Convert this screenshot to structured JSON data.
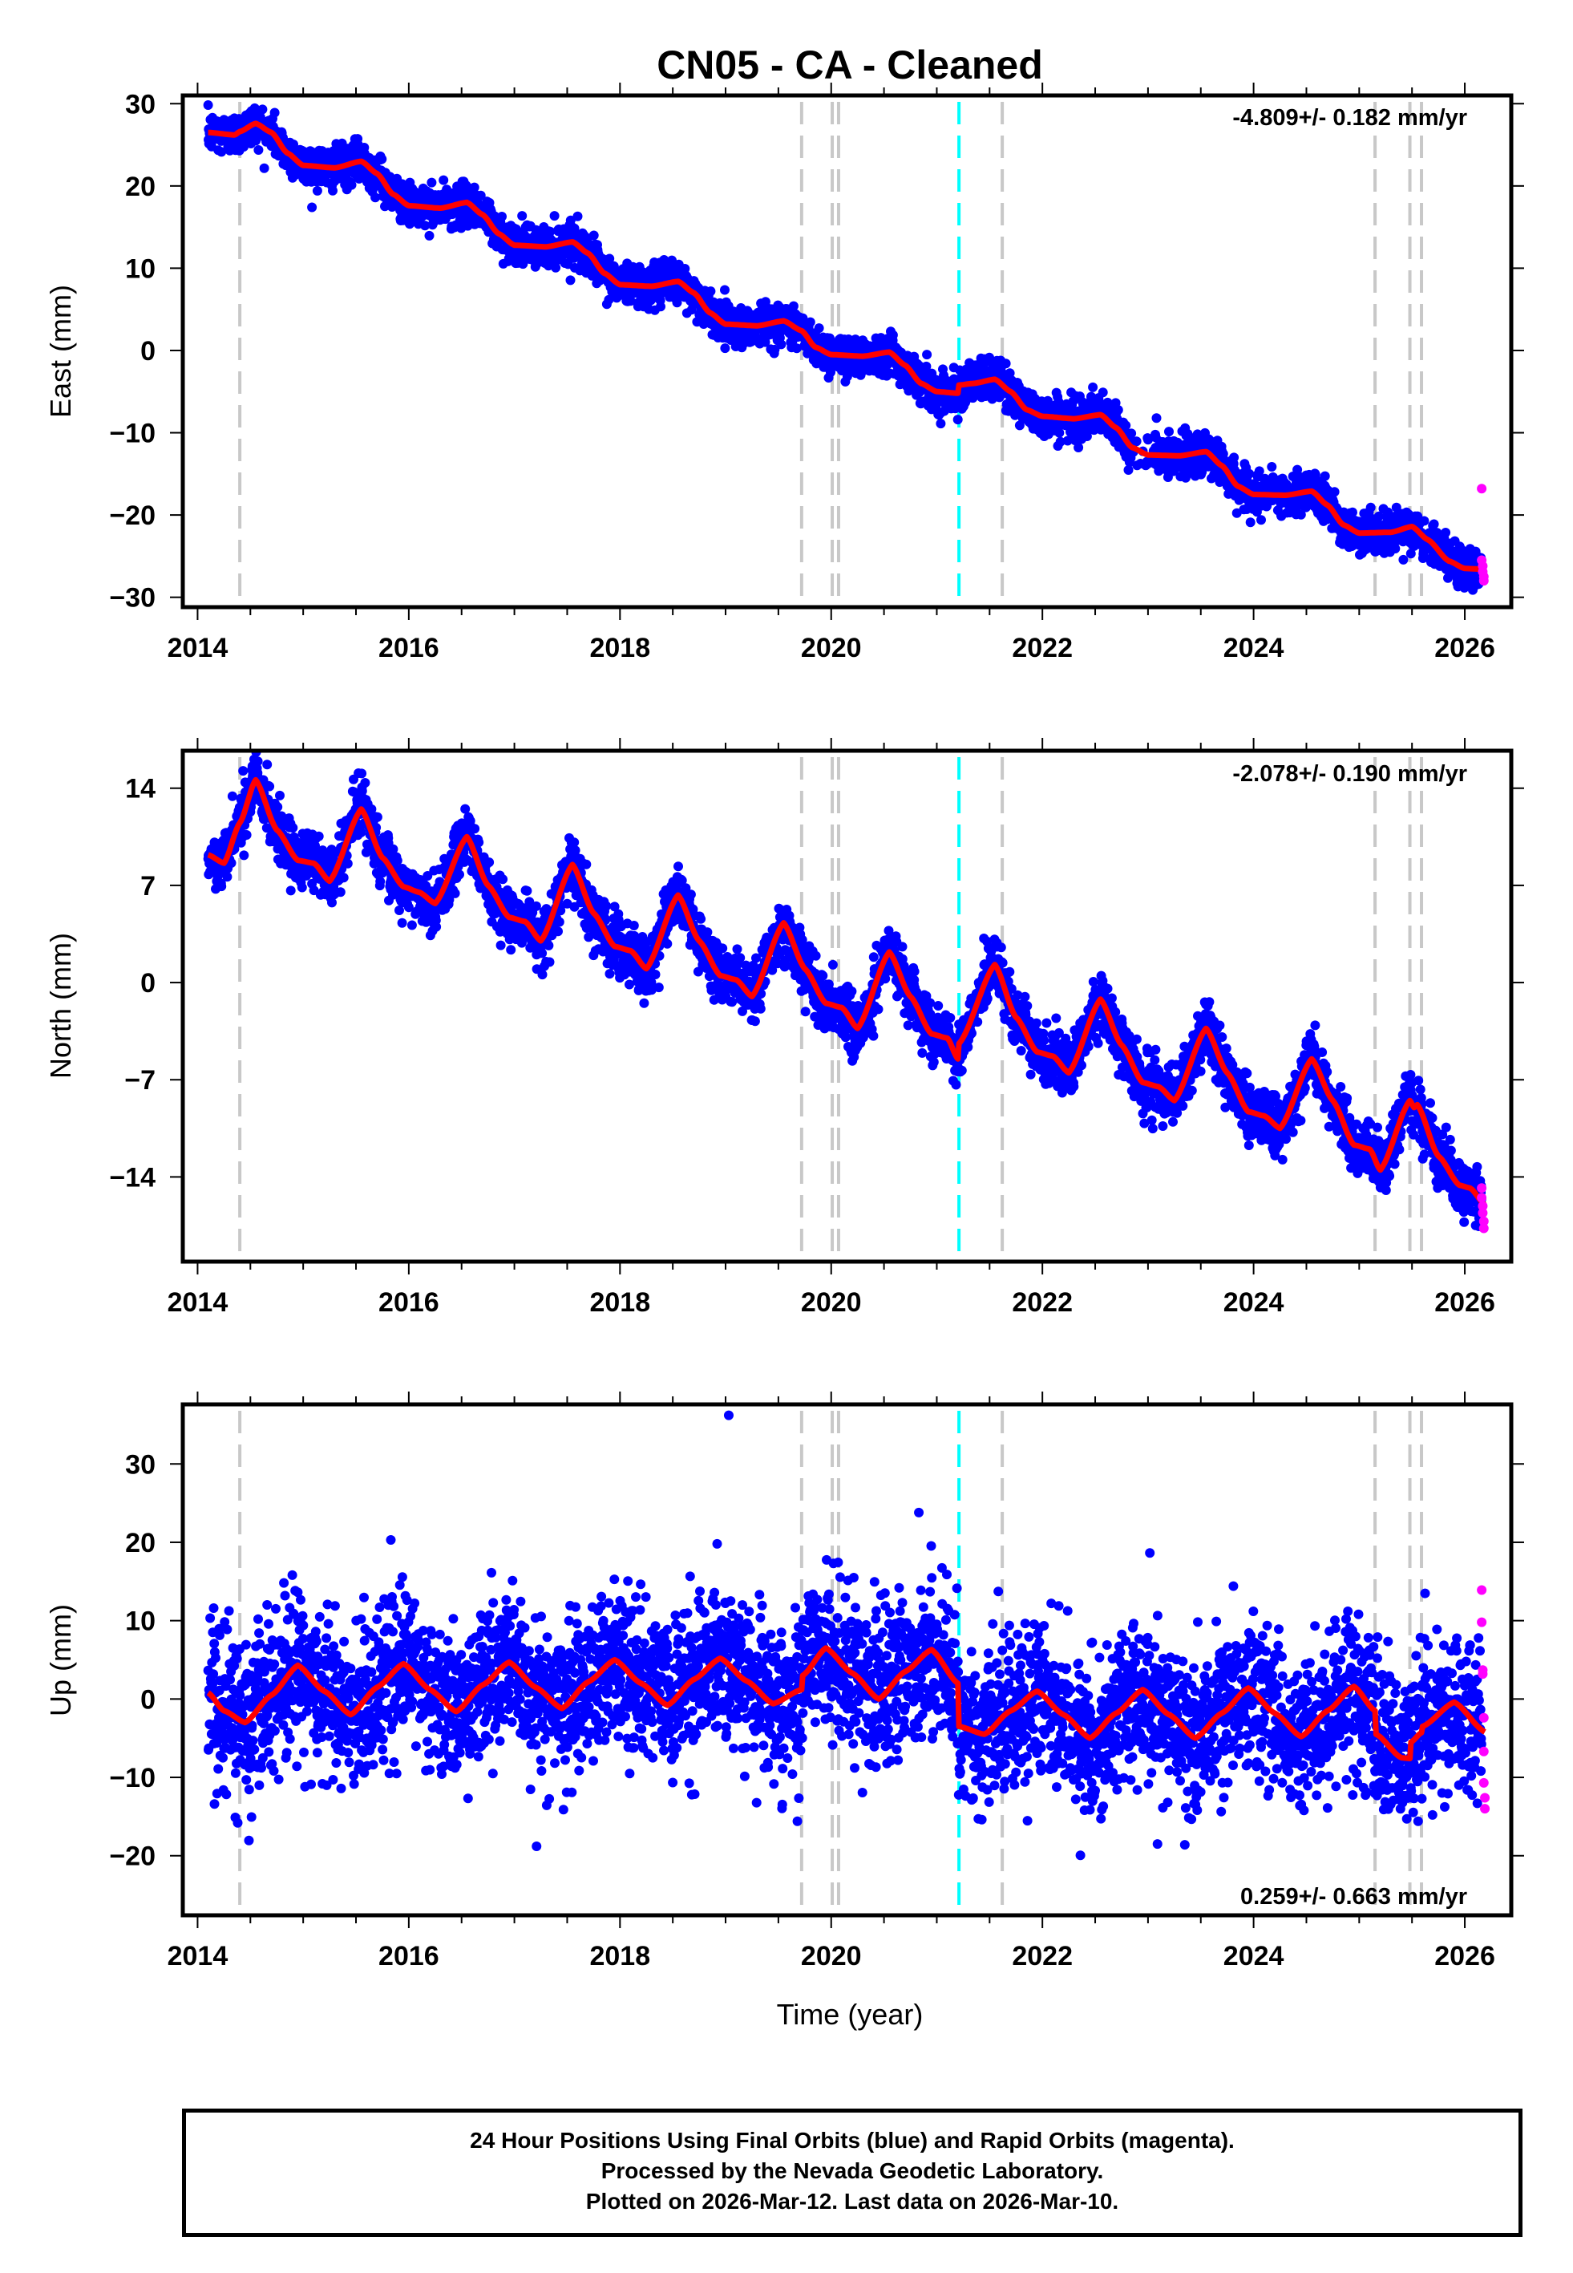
{
  "chart_data": {
    "type": "scatter",
    "title": "CN05  - CA - Cleaned",
    "xlabel": "Time (year)",
    "xlim": [
      2013.86,
      2026.44
    ],
    "x_ticks": [
      2014,
      2016,
      2018,
      2020,
      2022,
      2024,
      2026
    ],
    "x_tick_labels": [
      "2014",
      "2016",
      "2018",
      "2020",
      "2022",
      "2024",
      "2026"
    ],
    "x_minor_tick_step": 0.5,
    "data_start": 2014.1,
    "data_end": 2026.19,
    "equipment_change_lines": [
      2014.4,
      2019.72,
      2020.01,
      2020.07,
      2021.62,
      2025.15,
      2025.48,
      2025.59
    ],
    "earthquake_lines": [
      2021.21
    ],
    "colors": {
      "final_orbits": "#0000ff",
      "rapid_orbits": "#ff00ff",
      "model": "#ff0000",
      "equipment_line": "#c8c8c8",
      "earthquake_line": "#00ffff"
    },
    "panels": [
      {
        "name": "east",
        "ylabel": "East (mm)",
        "ylim": [
          -31.2,
          31.0
        ],
        "y_ticks": [
          30,
          20,
          10,
          0,
          -10,
          -20,
          -30
        ],
        "y_tick_labels": [
          "30",
          "20",
          "10",
          "0",
          "−10",
          "−20",
          "−30"
        ],
        "rate": "-4.809+/- 0.182 mm/yr",
        "rate_position": "top-right",
        "scatter_sigma": 1.2,
        "model_knots": [
          [
            2014.1,
            26.5
          ],
          [
            2014.35,
            26.2
          ],
          [
            2014.4,
            26.6
          ],
          [
            2014.55,
            27.6
          ],
          [
            2014.7,
            26.5
          ],
          [
            2014.85,
            24.0
          ],
          [
            2015.0,
            22.5
          ],
          [
            2015.3,
            22.2
          ],
          [
            2015.55,
            23.0
          ],
          [
            2015.7,
            21.5
          ],
          [
            2015.85,
            19.0
          ],
          [
            2016.0,
            17.6
          ],
          [
            2016.3,
            17.3
          ],
          [
            2016.55,
            18.0
          ],
          [
            2016.7,
            16.5
          ],
          [
            2016.85,
            14.2
          ],
          [
            2017.0,
            12.8
          ],
          [
            2017.3,
            12.6
          ],
          [
            2017.55,
            13.2
          ],
          [
            2017.7,
            11.8
          ],
          [
            2017.85,
            9.4
          ],
          [
            2018.0,
            8.0
          ],
          [
            2018.3,
            7.8
          ],
          [
            2018.55,
            8.4
          ],
          [
            2018.7,
            7.0
          ],
          [
            2018.85,
            4.6
          ],
          [
            2019.0,
            3.2
          ],
          [
            2019.3,
            3.0
          ],
          [
            2019.55,
            3.6
          ],
          [
            2019.72,
            2.4
          ],
          [
            2019.85,
            0.4
          ],
          [
            2020.0,
            -0.5
          ],
          [
            2020.3,
            -0.7
          ],
          [
            2020.55,
            -0.2
          ],
          [
            2020.7,
            -1.8
          ],
          [
            2020.85,
            -4.0
          ],
          [
            2021.0,
            -5.0
          ],
          [
            2021.2,
            -5.2
          ],
          [
            2021.21,
            -4.2
          ],
          [
            2021.35,
            -4.0
          ],
          [
            2021.55,
            -3.5
          ],
          [
            2021.7,
            -5.0
          ],
          [
            2021.85,
            -7.2
          ],
          [
            2022.0,
            -8.0
          ],
          [
            2022.3,
            -8.3
          ],
          [
            2022.55,
            -7.8
          ],
          [
            2022.7,
            -9.4
          ],
          [
            2022.85,
            -11.8
          ],
          [
            2023.0,
            -12.7
          ],
          [
            2023.3,
            -12.8
          ],
          [
            2023.55,
            -12.3
          ],
          [
            2023.7,
            -14.0
          ],
          [
            2023.85,
            -16.5
          ],
          [
            2024.0,
            -17.5
          ],
          [
            2024.3,
            -17.6
          ],
          [
            2024.55,
            -17.1
          ],
          [
            2024.7,
            -18.8
          ],
          [
            2024.85,
            -21.2
          ],
          [
            2025.0,
            -22.2
          ],
          [
            2025.3,
            -22.1
          ],
          [
            2025.5,
            -21.4
          ],
          [
            2025.65,
            -23.0
          ],
          [
            2025.85,
            -25.6
          ],
          [
            2026.0,
            -26.5
          ],
          [
            2026.19,
            -26.6
          ]
        ],
        "rapid_points": [
          [
            2026.16,
            -16.8
          ],
          [
            2026.16,
            -25.5
          ],
          [
            2026.17,
            -26.2
          ],
          [
            2026.17,
            -26.9
          ],
          [
            2026.18,
            -27.5
          ],
          [
            2026.18,
            -28.0
          ]
        ]
      },
      {
        "name": "north",
        "ylabel": "North (mm)",
        "ylim": [
          -20.1,
          16.7
        ],
        "y_ticks": [
          14,
          7,
          0,
          -7,
          -14
        ],
        "y_tick_labels": [
          "14",
          "7",
          "0",
          "−7",
          "−14"
        ],
        "rate": "-2.078+/- 0.190 mm/yr",
        "rate_position": "top-right",
        "scatter_sigma": 1.0,
        "model_knots": [
          [
            2014.1,
            9.2
          ],
          [
            2014.25,
            8.6
          ],
          [
            2014.4,
            11.5
          ],
          [
            2014.55,
            14.6
          ],
          [
            2014.75,
            11.0
          ],
          [
            2014.95,
            8.8
          ],
          [
            2015.1,
            8.6
          ],
          [
            2015.25,
            7.3
          ],
          [
            2015.55,
            12.5
          ],
          [
            2015.75,
            9.0
          ],
          [
            2015.95,
            6.9
          ],
          [
            2016.1,
            6.5
          ],
          [
            2016.25,
            5.7
          ],
          [
            2016.55,
            10.5
          ],
          [
            2016.75,
            7.0
          ],
          [
            2016.95,
            4.7
          ],
          [
            2017.1,
            4.4
          ],
          [
            2017.25,
            3.0
          ],
          [
            2017.55,
            8.5
          ],
          [
            2017.75,
            5.0
          ],
          [
            2017.95,
            2.6
          ],
          [
            2018.1,
            2.3
          ],
          [
            2018.25,
            1.0
          ],
          [
            2018.55,
            6.3
          ],
          [
            2018.75,
            3.0
          ],
          [
            2018.95,
            0.5
          ],
          [
            2019.1,
            0.2
          ],
          [
            2019.25,
            -1.0
          ],
          [
            2019.55,
            4.3
          ],
          [
            2019.75,
            1.0
          ],
          [
            2019.95,
            -1.5
          ],
          [
            2020.1,
            -1.8
          ],
          [
            2020.25,
            -3.3
          ],
          [
            2020.55,
            2.2
          ],
          [
            2020.75,
            -1.0
          ],
          [
            2020.95,
            -3.7
          ],
          [
            2021.1,
            -4.0
          ],
          [
            2021.2,
            -5.5
          ],
          [
            2021.21,
            -4.4
          ],
          [
            2021.55,
            1.3
          ],
          [
            2021.75,
            -2.5
          ],
          [
            2021.95,
            -5.0
          ],
          [
            2022.1,
            -5.3
          ],
          [
            2022.25,
            -6.5
          ],
          [
            2022.55,
            -1.2
          ],
          [
            2022.75,
            -4.5
          ],
          [
            2022.95,
            -7.2
          ],
          [
            2023.1,
            -7.5
          ],
          [
            2023.25,
            -8.5
          ],
          [
            2023.55,
            -3.3
          ],
          [
            2023.75,
            -6.5
          ],
          [
            2023.95,
            -9.3
          ],
          [
            2024.1,
            -9.6
          ],
          [
            2024.25,
            -10.5
          ],
          [
            2024.55,
            -5.5
          ],
          [
            2024.75,
            -8.5
          ],
          [
            2024.95,
            -11.7
          ],
          [
            2025.1,
            -12.0
          ],
          [
            2025.2,
            -13.5
          ],
          [
            2025.48,
            -8.5
          ],
          [
            2025.52,
            -9.0
          ],
          [
            2025.55,
            -8.8
          ],
          [
            2025.75,
            -12.5
          ],
          [
            2025.95,
            -14.6
          ],
          [
            2026.05,
            -14.8
          ],
          [
            2026.19,
            -16.0
          ]
        ],
        "rapid_points": [
          [
            2026.16,
            -14.8
          ],
          [
            2026.16,
            -15.5
          ],
          [
            2026.17,
            -16.1
          ],
          [
            2026.17,
            -16.6
          ],
          [
            2026.18,
            -17.2
          ],
          [
            2026.18,
            -17.7
          ]
        ]
      },
      {
        "name": "up",
        "ylabel": "Up (mm)",
        "ylim": [
          -27.6,
          37.6
        ],
        "y_ticks": [
          30,
          20,
          10,
          0,
          -10,
          -20
        ],
        "y_tick_labels": [
          "30",
          "20",
          "10",
          "0",
          "−10",
          "−20"
        ],
        "rate": "0.259+/- 0.663 mm/yr",
        "rate_position": "bottom-right",
        "scatter_sigma": 4.8,
        "model_knots": [
          [
            2014.1,
            0.8
          ],
          [
            2014.25,
            -1.5
          ],
          [
            2014.45,
            -3.0
          ],
          [
            2014.7,
            0.5
          ],
          [
            2014.95,
            4.3
          ],
          [
            2015.2,
            1.0
          ],
          [
            2015.45,
            -2.0
          ],
          [
            2015.7,
            1.5
          ],
          [
            2015.95,
            4.5
          ],
          [
            2016.2,
            1.2
          ],
          [
            2016.45,
            -1.6
          ],
          [
            2016.7,
            1.8
          ],
          [
            2016.95,
            4.7
          ],
          [
            2017.2,
            1.5
          ],
          [
            2017.45,
            -1.2
          ],
          [
            2017.7,
            2.2
          ],
          [
            2017.95,
            5.0
          ],
          [
            2018.2,
            2.0
          ],
          [
            2018.45,
            -0.8
          ],
          [
            2018.7,
            2.5
          ],
          [
            2018.95,
            5.2
          ],
          [
            2019.2,
            2.3
          ],
          [
            2019.45,
            -0.6
          ],
          [
            2019.72,
            1.2
          ],
          [
            2019.73,
            3.0
          ],
          [
            2019.95,
            6.5
          ],
          [
            2020.2,
            3.3
          ],
          [
            2020.45,
            0.0
          ],
          [
            2020.7,
            3.5
          ],
          [
            2020.95,
            6.3
          ],
          [
            2021.2,
            2.0
          ],
          [
            2021.21,
            -3.5
          ],
          [
            2021.45,
            -4.5
          ],
          [
            2021.7,
            -1.5
          ],
          [
            2021.95,
            1.0
          ],
          [
            2022.2,
            -2.0
          ],
          [
            2022.45,
            -5.0
          ],
          [
            2022.7,
            -1.8
          ],
          [
            2022.95,
            1.2
          ],
          [
            2023.2,
            -2.0
          ],
          [
            2023.45,
            -5.0
          ],
          [
            2023.7,
            -1.8
          ],
          [
            2023.95,
            1.4
          ],
          [
            2024.2,
            -1.8
          ],
          [
            2024.45,
            -4.8
          ],
          [
            2024.7,
            -1.5
          ],
          [
            2024.95,
            1.6
          ],
          [
            2025.15,
            -1.5
          ],
          [
            2025.16,
            -4.5
          ],
          [
            2025.4,
            -7.5
          ],
          [
            2025.48,
            -7.6
          ],
          [
            2025.49,
            -5.5
          ],
          [
            2025.59,
            -4.3
          ],
          [
            2025.6,
            -3.5
          ],
          [
            2025.9,
            -0.4
          ],
          [
            2026.19,
            -4.2
          ]
        ],
        "outliers": [
          [
            2019.03,
            36.2
          ],
          [
            2020.83,
            23.8
          ],
          [
            2015.83,
            20.3
          ],
          [
            2018.92,
            19.8
          ],
          [
            2017.21,
            -18.8
          ],
          [
            2023.09,
            -18.5
          ],
          [
            2019.68,
            -15.6
          ],
          [
            2014.38,
            -15.8
          ]
        ],
        "rapid_points": [
          [
            2026.16,
            13.9
          ],
          [
            2026.16,
            9.8
          ],
          [
            2026.17,
            3.7
          ],
          [
            2026.17,
            3.2
          ],
          [
            2026.18,
            -2.4
          ],
          [
            2026.18,
            -6.7
          ],
          [
            2026.18,
            -10.7
          ],
          [
            2026.19,
            -12.6
          ],
          [
            2026.19,
            -14.0
          ]
        ]
      }
    ]
  },
  "footer": {
    "line1": "24 Hour Positions Using Final Orbits (blue) and Rapid Orbits (magenta).",
    "line2": "Processed by the Nevada Geodetic Laboratory.",
    "line3": "Plotted on 2026-Mar-12. Last data on 2026-Mar-10."
  }
}
